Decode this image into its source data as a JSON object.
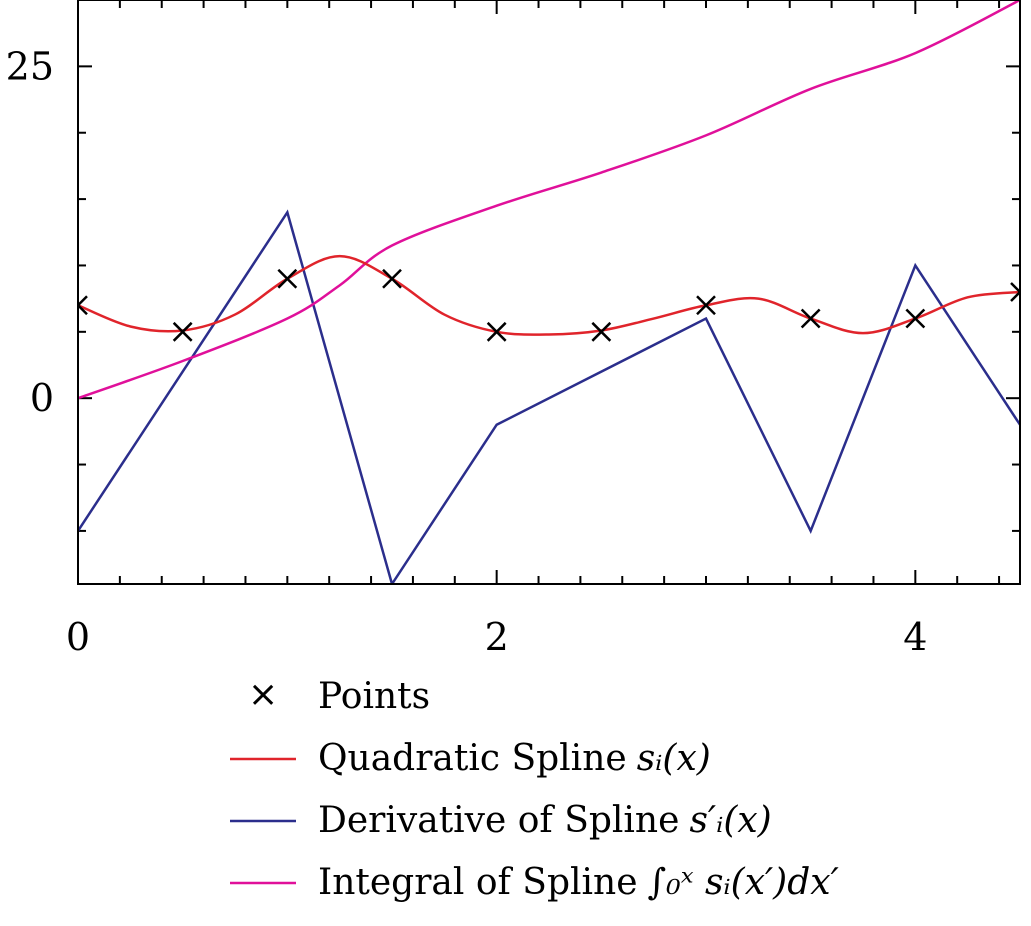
{
  "chart_data": {
    "type": "line",
    "xlim": [
      0,
      4.5
    ],
    "ylim": [
      -14,
      30
    ],
    "x_ticks_major": [
      0,
      2,
      4
    ],
    "x_tick_labels": [
      "0",
      "2",
      "4"
    ],
    "y_ticks_major": [
      0,
      25
    ],
    "y_tick_labels": [
      "0",
      "25"
    ],
    "legend_position": "below",
    "series": [
      {
        "name": "Points",
        "kind": "scatter",
        "marker": "x",
        "color": "#000000",
        "x": [
          0,
          0.5,
          1,
          1.5,
          2,
          2.5,
          3,
          3.5,
          4,
          4.5
        ],
        "y": [
          7,
          5,
          9,
          9,
          5,
          5,
          7,
          6,
          6,
          8
        ]
      },
      {
        "name": "Quadratic Spline",
        "math": "sᵢ(x)",
        "kind": "line",
        "color": "#e0242b",
        "x": [
          0,
          0.25,
          0.5,
          0.75,
          1,
          1.25,
          1.5,
          1.75,
          2,
          2.25,
          2.5,
          2.75,
          3,
          3.25,
          3.5,
          3.75,
          4,
          4.25,
          4.5
        ],
        "y": [
          7,
          5.4,
          5.1,
          6.3,
          9,
          10.7,
          9,
          6.3,
          5,
          4.8,
          5.1,
          6,
          7,
          7.5,
          6,
          4.9,
          6,
          7.6,
          8
        ]
      },
      {
        "name": "Derivative of Spline",
        "math": "s′ᵢ(x)",
        "kind": "line",
        "color": "#2b2e8c",
        "x": [
          0,
          1,
          1.5,
          2,
          3,
          3.5,
          4,
          4.5
        ],
        "y": [
          -10,
          14,
          -14,
          -2,
          6,
          -10,
          10,
          -2
        ]
      },
      {
        "name": "Integral of Spline",
        "math": "∫₀ˣ sᵢ(x′)dx′",
        "kind": "line",
        "color": "#e0109a",
        "x": [
          0,
          0.5,
          1,
          1.25,
          1.5,
          2,
          2.5,
          3,
          3.5,
          4,
          4.5
        ],
        "y": [
          0,
          2.8,
          6,
          8.5,
          11.5,
          14.5,
          17,
          19.8,
          23.3,
          26,
          30
        ]
      }
    ]
  },
  "legend": {
    "points": "Points",
    "quadratic": "Quadratic Spline",
    "quadratic_math": "sᵢ(x)",
    "derivative": "Derivative of Spline",
    "derivative_math": "s′ᵢ(x)",
    "integral": "Integral of Spline",
    "integral_math": "∫₀ˣ sᵢ(x′)dx′"
  }
}
